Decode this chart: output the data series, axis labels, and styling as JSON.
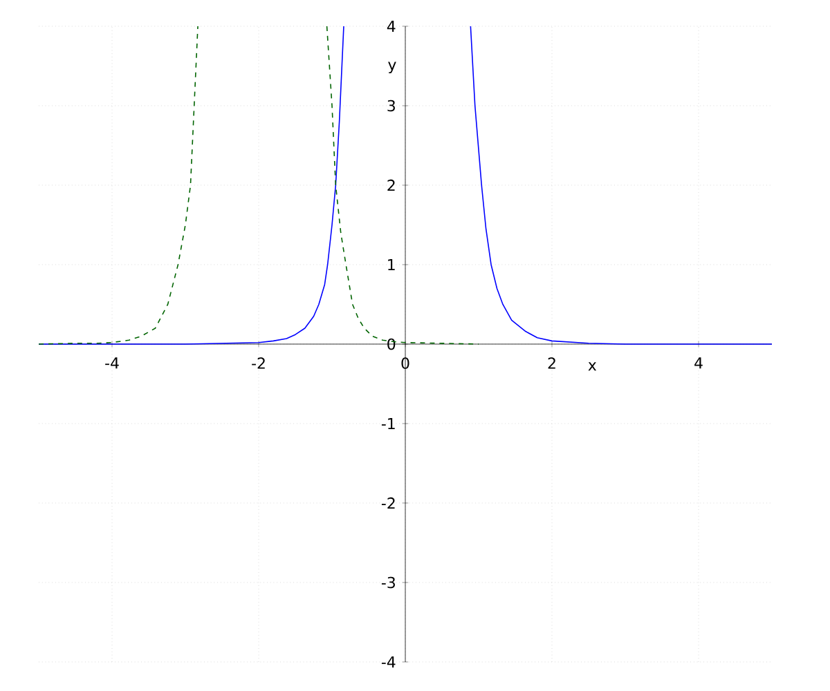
{
  "chart_data": {
    "type": "line",
    "xlabel": "x",
    "ylabel": "y",
    "xlim": [
      -5,
      5
    ],
    "ylim": [
      -4,
      4
    ],
    "xticks": [
      -4,
      -2,
      0,
      2,
      4
    ],
    "yticks": [
      -4,
      -3,
      -2,
      -1,
      0,
      1,
      2,
      3,
      4
    ],
    "grid": true,
    "marker": "none",
    "series": [
      {
        "color": "#0000ff",
        "line_style": "solid",
        "x": [
          -5,
          -4,
          -3,
          -2.5,
          -2,
          -1.8,
          -1.62,
          -1.5,
          -1.37,
          -1.25,
          -1.18,
          -1.1,
          -1.06,
          -1,
          -0.95,
          -0.9,
          -0.84,
          null,
          0.89,
          0.95,
          1.04,
          1.1,
          1.17,
          1.25,
          1.33,
          1.45,
          1.64,
          1.8,
          2,
          2.5,
          3,
          4,
          5
        ],
        "values": [
          0,
          0,
          0,
          0.01,
          0.02,
          0.04,
          0.07,
          0.12,
          0.2,
          0.35,
          0.5,
          0.75,
          1,
          1.5,
          2,
          2.8,
          4,
          null,
          4,
          3,
          2,
          1.45,
          1,
          0.7,
          0.5,
          0.3,
          0.16,
          0.08,
          0.04,
          0.01,
          0,
          0,
          0
        ]
      },
      {
        "color": "#006400",
        "line_style": "dashed",
        "x": [
          -5,
          -4.5,
          -4.2,
          -4,
          -3.77,
          -3.6,
          -3.41,
          -3.24,
          -3.1,
          -3,
          -2.93,
          -2.88,
          -2.83,
          null,
          -1.07,
          -1,
          -0.95,
          -0.88,
          -0.81,
          -0.72,
          -0.64,
          -0.56,
          -0.45,
          -0.31,
          -0.15,
          0,
          0.5,
          1
        ],
        "values": [
          0,
          0.01,
          0.01,
          0.02,
          0.05,
          0.1,
          0.2,
          0.5,
          1,
          1.5,
          2,
          3,
          4,
          null,
          4,
          3,
          2,
          1.4,
          1,
          0.5,
          0.32,
          0.2,
          0.1,
          0.05,
          0.03,
          0.02,
          0.01,
          0
        ]
      }
    ]
  }
}
